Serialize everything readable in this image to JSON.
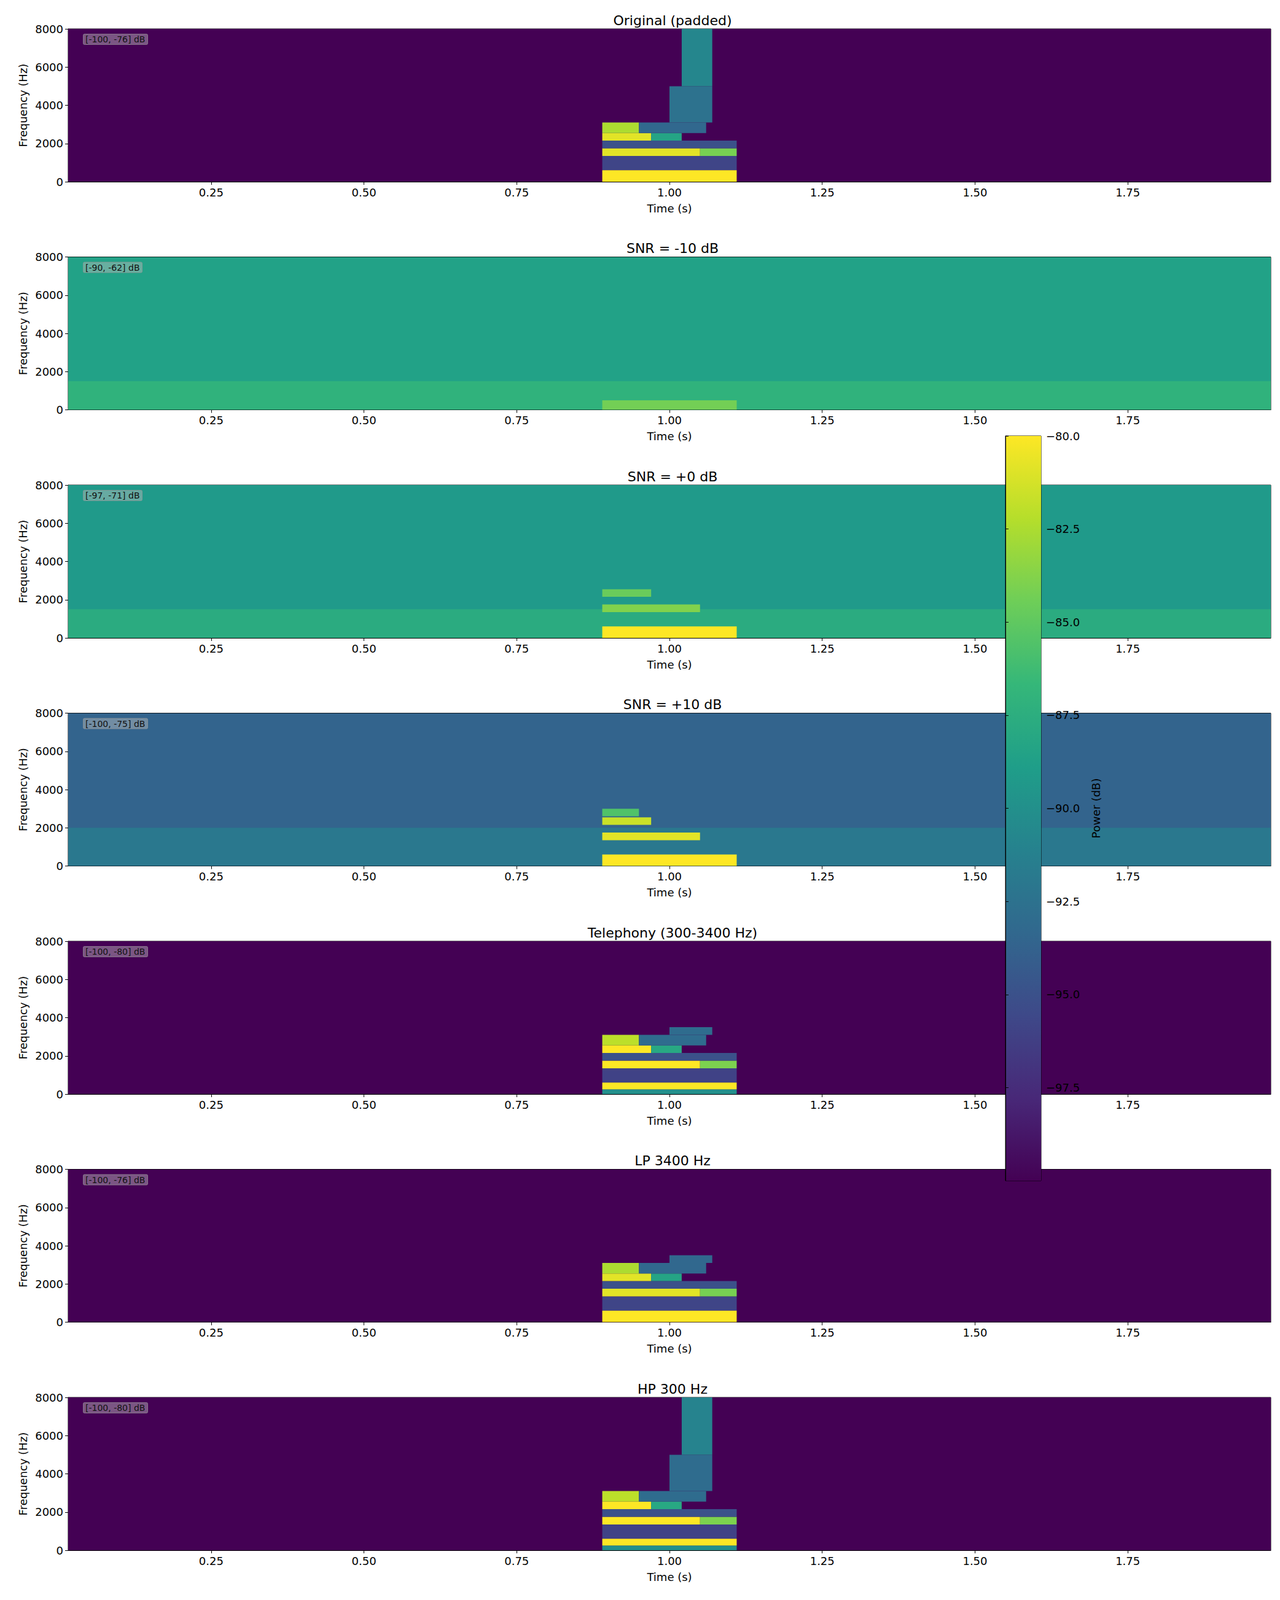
{
  "chart_data": [
    {
      "type": "heatmap",
      "title": "Original (padded)",
      "x_label": "Time (s)",
      "y_label": "Frequency (Hz)",
      "xlim": [
        0.016,
        1.984
      ],
      "xticks": [
        0.25,
        {
          "value": 0.5,
          "label": "0.50"
        },
        0.75,
        {
          "value": 1.0,
          "label": "1.00"
        },
        1.25,
        {
          "value": 1.5,
          "label": "1.50"
        },
        1.75
      ],
      "ylim": [
        0,
        8000
      ],
      "yticks": [
        0,
        2000,
        4000,
        6000,
        8000
      ],
      "color_range": [
        -100,
        -76
      ],
      "range_label": "[-100, -76] dB",
      "cells": [
        [
          0.016,
          1.984,
          0,
          8000,
          -100
        ],
        [
          0.89,
          1.11,
          600,
          1350,
          -95
        ],
        [
          0.89,
          1.11,
          0,
          600,
          -76
        ],
        [
          0.89,
          1.05,
          1350,
          1750,
          -77
        ],
        [
          1.05,
          1.11,
          1350,
          1750,
          -81
        ],
        [
          0.89,
          1.11,
          1750,
          2150,
          -94
        ],
        [
          0.89,
          0.97,
          2150,
          2550,
          -77
        ],
        [
          0.97,
          1.02,
          2150,
          2550,
          -86
        ],
        [
          0.89,
          0.95,
          2550,
          3100,
          -79
        ],
        [
          0.95,
          1.06,
          2550,
          3100,
          -92
        ],
        [
          1.0,
          1.07,
          3100,
          5000,
          -91
        ],
        [
          1.02,
          1.07,
          5000,
          8000,
          -89
        ]
      ]
    },
    {
      "type": "heatmap",
      "title": "SNR = -10 dB",
      "x_label": "Time (s)",
      "y_label": "Frequency (Hz)",
      "xlim": [
        0.016,
        1.984
      ],
      "xticks": [
        0.25,
        {
          "value": 0.5,
          "label": "0.50"
        },
        0.75,
        {
          "value": 1.0,
          "label": "1.00"
        },
        1.25,
        {
          "value": 1.5,
          "label": "1.50"
        },
        1.75
      ],
      "ylim": [
        0,
        8000
      ],
      "yticks": [
        0,
        2000,
        4000,
        6000,
        8000
      ],
      "color_range": [
        -90,
        -62
      ],
      "range_label": "[-90, -62] dB",
      "cells": [
        [
          0.016,
          1.984,
          0,
          8000,
          -74
        ],
        [
          0.016,
          1.984,
          0,
          1500,
          -72
        ],
        [
          0.89,
          1.11,
          0,
          500,
          -68
        ]
      ]
    },
    {
      "type": "heatmap",
      "title": "SNR = +0 dB",
      "x_label": "Time (s)",
      "y_label": "Frequency (Hz)",
      "xlim": [
        0.016,
        1.984
      ],
      "xticks": [
        0.25,
        {
          "value": 0.5,
          "label": "0.50"
        },
        0.75,
        {
          "value": 1.0,
          "label": "1.00"
        },
        1.25,
        {
          "value": 1.5,
          "label": "1.50"
        },
        1.75
      ],
      "ylim": [
        0,
        8000
      ],
      "yticks": [
        0,
        2000,
        4000,
        6000,
        8000
      ],
      "color_range": [
        -97,
        -71
      ],
      "range_label": "[-97, -71] dB",
      "cells": [
        [
          0.016,
          1.984,
          0,
          8000,
          -83
        ],
        [
          0.016,
          1.984,
          0,
          1500,
          -81
        ],
        [
          0.89,
          1.11,
          0,
          600,
          -71
        ],
        [
          0.89,
          1.05,
          1350,
          1750,
          -76
        ],
        [
          0.89,
          0.97,
          2150,
          2550,
          -77
        ]
      ]
    },
    {
      "type": "heatmap",
      "title": "SNR = +10 dB",
      "x_label": "Time (s)",
      "y_label": "Frequency (Hz)",
      "xlim": [
        0.016,
        1.984
      ],
      "xticks": [
        0.25,
        {
          "value": 0.5,
          "label": "0.50"
        },
        0.75,
        {
          "value": 1.0,
          "label": "1.00"
        },
        1.25,
        {
          "value": 1.5,
          "label": "1.50"
        },
        1.75
      ],
      "ylim": [
        0,
        8000
      ],
      "yticks": [
        0,
        2000,
        4000,
        6000,
        8000
      ],
      "color_range": [
        -100,
        -75
      ],
      "range_label": "[-100, -75] dB",
      "cells": [
        [
          0.016,
          1.984,
          0,
          8000,
          -92
        ],
        [
          0.016,
          1.984,
          0,
          2000,
          -90
        ],
        [
          0.89,
          1.11,
          0,
          600,
          -75
        ],
        [
          0.89,
          1.05,
          1350,
          1750,
          -76
        ],
        [
          0.89,
          0.97,
          2150,
          2550,
          -77
        ],
        [
          0.89,
          0.95,
          2600,
          3000,
          -82
        ]
      ]
    },
    {
      "type": "heatmap",
      "title": "Telephony (300-3400 Hz)",
      "x_label": "Time (s)",
      "y_label": "Frequency (Hz)",
      "xlim": [
        0.016,
        1.984
      ],
      "xticks": [
        0.25,
        {
          "value": 0.5,
          "label": "0.50"
        },
        0.75,
        {
          "value": 1.0,
          "label": "1.00"
        },
        1.25,
        {
          "value": 1.5,
          "label": "1.50"
        },
        1.75
      ],
      "ylim": [
        0,
        8000
      ],
      "yticks": [
        0,
        2000,
        4000,
        6000,
        8000
      ],
      "color_range": [
        -100,
        -80
      ],
      "range_label": "[-100, -80] dB",
      "cells": [
        [
          0.016,
          1.984,
          0,
          8000,
          -100
        ],
        [
          0.89,
          1.11,
          0,
          250,
          -90
        ],
        [
          0.89,
          1.11,
          600,
          1350,
          -96
        ],
        [
          0.89,
          1.11,
          250,
          600,
          -80
        ],
        [
          0.89,
          1.05,
          1350,
          1750,
          -80
        ],
        [
          1.05,
          1.11,
          1350,
          1750,
          -84
        ],
        [
          0.89,
          1.11,
          1750,
          2150,
          -95
        ],
        [
          0.89,
          0.97,
          2150,
          2550,
          -80
        ],
        [
          0.97,
          1.02,
          2150,
          2550,
          -88
        ],
        [
          0.89,
          0.95,
          2550,
          3100,
          -82
        ],
        [
          0.95,
          1.06,
          2550,
          3100,
          -93
        ],
        [
          1.0,
          1.07,
          3100,
          3500,
          -93
        ]
      ]
    },
    {
      "type": "heatmap",
      "title": "LP 3400 Hz",
      "x_label": "Time (s)",
      "y_label": "Frequency (Hz)",
      "xlim": [
        0.016,
        1.984
      ],
      "xticks": [
        0.25,
        {
          "value": 0.5,
          "label": "0.50"
        },
        0.75,
        {
          "value": 1.0,
          "label": "1.00"
        },
        1.25,
        {
          "value": 1.5,
          "label": "1.50"
        },
        1.75
      ],
      "ylim": [
        0,
        8000
      ],
      "yticks": [
        0,
        2000,
        4000,
        6000,
        8000
      ],
      "color_range": [
        -100,
        -76
      ],
      "range_label": "[-100, -76] dB",
      "cells": [
        [
          0.016,
          1.984,
          0,
          8000,
          -100
        ],
        [
          0.89,
          1.11,
          600,
          1350,
          -95
        ],
        [
          0.89,
          1.11,
          0,
          600,
          -76
        ],
        [
          0.89,
          1.05,
          1350,
          1750,
          -77
        ],
        [
          1.05,
          1.11,
          1350,
          1750,
          -81
        ],
        [
          0.89,
          1.11,
          1750,
          2150,
          -94
        ],
        [
          0.89,
          0.97,
          2150,
          2550,
          -77
        ],
        [
          0.97,
          1.02,
          2150,
          2550,
          -86
        ],
        [
          0.89,
          0.95,
          2550,
          3100,
          -79
        ],
        [
          0.95,
          1.06,
          2550,
          3100,
          -92
        ],
        [
          1.0,
          1.07,
          3100,
          3500,
          -92
        ]
      ]
    },
    {
      "type": "heatmap",
      "title": "HP 300 Hz",
      "x_label": "Time (s)",
      "y_label": "Frequency (Hz)",
      "xlim": [
        0.016,
        1.984
      ],
      "xticks": [
        0.25,
        {
          "value": 0.5,
          "label": "0.50"
        },
        0.75,
        {
          "value": 1.0,
          "label": "1.00"
        },
        1.25,
        {
          "value": 1.5,
          "label": "1.50"
        },
        1.75
      ],
      "ylim": [
        0,
        8000
      ],
      "yticks": [
        0,
        2000,
        4000,
        6000,
        8000
      ],
      "color_range": [
        -100,
        -80
      ],
      "range_label": "[-100, -80] dB",
      "cells": [
        [
          0.016,
          1.984,
          0,
          8000,
          -100
        ],
        [
          0.89,
          1.11,
          0,
          250,
          -90
        ],
        [
          0.89,
          1.11,
          600,
          1350,
          -96
        ],
        [
          0.89,
          1.11,
          250,
          600,
          -80
        ],
        [
          0.89,
          1.05,
          1350,
          1750,
          -80
        ],
        [
          1.05,
          1.11,
          1350,
          1750,
          -84
        ],
        [
          0.89,
          1.11,
          1750,
          2150,
          -95
        ],
        [
          0.89,
          0.97,
          2150,
          2550,
          -80
        ],
        [
          0.97,
          1.02,
          2150,
          2550,
          -88
        ],
        [
          0.89,
          0.95,
          2550,
          3100,
          -82
        ],
        [
          0.95,
          1.06,
          2550,
          3100,
          -93
        ],
        [
          1.0,
          1.07,
          3100,
          5000,
          -93
        ],
        [
          1.02,
          1.07,
          5000,
          8000,
          -91
        ]
      ],
      "colorbar": {
        "label": "Power (dB)",
        "range": [
          -100,
          -80
        ],
        "ticks": [
          {
            "value": -80,
            "label": "−80.0"
          },
          {
            "value": -82.5,
            "label": "−82.5"
          },
          {
            "value": -85,
            "label": "−85.0"
          },
          {
            "value": -87.5,
            "label": "−87.5"
          },
          {
            "value": -90,
            "label": "−90.0"
          },
          {
            "value": -92.5,
            "label": "−92.5"
          },
          {
            "value": -95,
            "label": "−95.0"
          },
          {
            "value": -97.5,
            "label": "−97.5"
          }
        ]
      }
    }
  ]
}
